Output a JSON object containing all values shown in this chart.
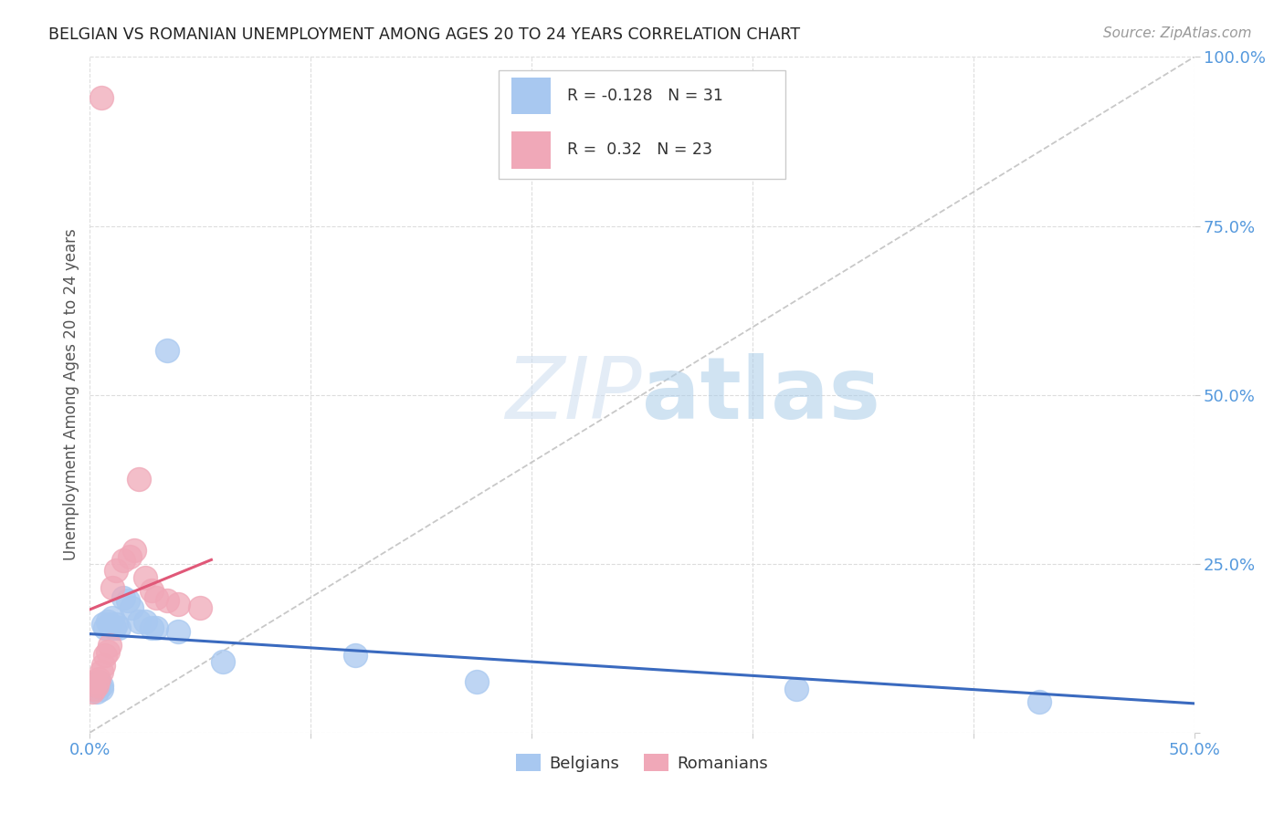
{
  "title": "BELGIAN VS ROMANIAN UNEMPLOYMENT AMONG AGES 20 TO 24 YEARS CORRELATION CHART",
  "source": "Source: ZipAtlas.com",
  "ylabel": "Unemployment Among Ages 20 to 24 years",
  "xlim": [
    0.0,
    0.5
  ],
  "ylim": [
    0.0,
    1.0
  ],
  "belgian_color": "#a8c8f0",
  "romanian_color": "#f0a8b8",
  "belgian_R": -0.128,
  "belgian_N": 31,
  "romanian_R": 0.32,
  "romanian_N": 23,
  "diagonal_color": "#c8c8c8",
  "belgian_line_color": "#3a6abf",
  "romanian_line_color": "#e05878",
  "watermark_zip": "ZIP",
  "watermark_atlas": "atlas",
  "belgians_x": [
    0.001,
    0.002,
    0.002,
    0.003,
    0.003,
    0.004,
    0.004,
    0.005,
    0.005,
    0.006,
    0.007,
    0.008,
    0.009,
    0.01,
    0.011,
    0.012,
    0.013,
    0.015,
    0.017,
    0.019,
    0.022,
    0.025,
    0.028,
    0.03,
    0.035,
    0.04,
    0.06,
    0.12,
    0.175,
    0.32,
    0.43
  ],
  "belgians_y": [
    0.068,
    0.065,
    0.07,
    0.06,
    0.072,
    0.068,
    0.075,
    0.065,
    0.07,
    0.16,
    0.155,
    0.165,
    0.16,
    0.17,
    0.155,
    0.16,
    0.155,
    0.2,
    0.195,
    0.185,
    0.165,
    0.165,
    0.155,
    0.155,
    0.565,
    0.15,
    0.105,
    0.115,
    0.075,
    0.065,
    0.045
  ],
  "romanians_x": [
    0.001,
    0.002,
    0.003,
    0.003,
    0.004,
    0.005,
    0.006,
    0.007,
    0.008,
    0.009,
    0.01,
    0.012,
    0.015,
    0.018,
    0.02,
    0.022,
    0.025,
    0.028,
    0.03,
    0.035,
    0.04,
    0.05,
    0.005
  ],
  "romanians_y": [
    0.06,
    0.065,
    0.07,
    0.075,
    0.08,
    0.09,
    0.1,
    0.115,
    0.12,
    0.13,
    0.215,
    0.24,
    0.255,
    0.26,
    0.27,
    0.375,
    0.23,
    0.21,
    0.2,
    0.195,
    0.19,
    0.185,
    0.94
  ]
}
